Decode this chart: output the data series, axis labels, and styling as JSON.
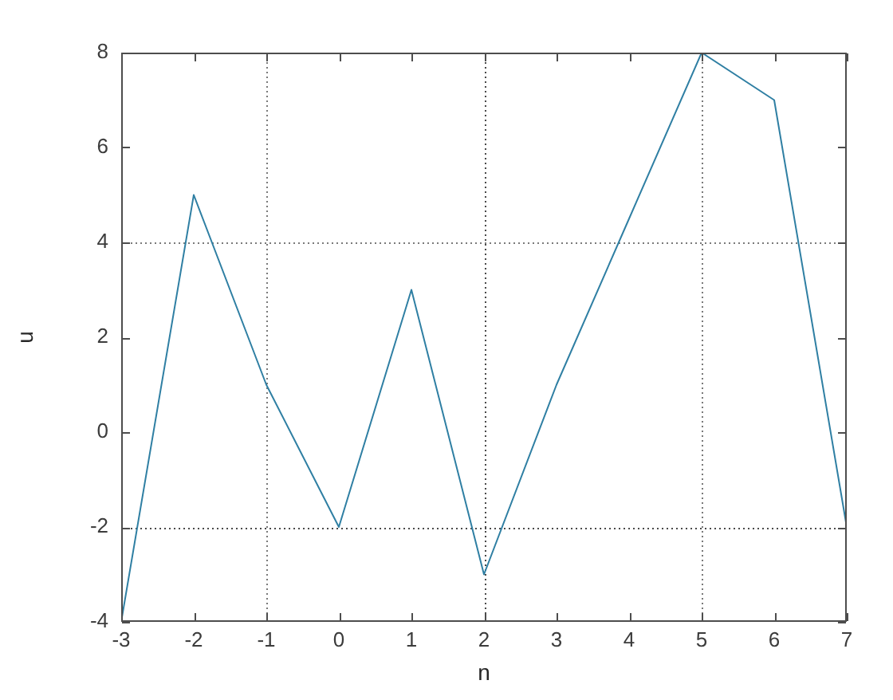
{
  "chart_data": {
    "type": "line",
    "xlabel": "n",
    "ylabel": "u",
    "x": [
      -3,
      -2,
      -1,
      0,
      1,
      2,
      3,
      4,
      5,
      6,
      7
    ],
    "values": [
      -4,
      5,
      1,
      -2,
      3,
      -3,
      1,
      4.5,
      8,
      7,
      -2
    ],
    "color": "#2f7fa3",
    "xlim": [
      -3,
      7
    ],
    "xticks": [
      -3,
      -2,
      -1,
      0,
      1,
      2,
      3,
      4,
      5,
      6,
      7
    ],
    "ylim": [
      -4,
      8
    ],
    "yticks": [
      -4,
      -2,
      0,
      2,
      4,
      6,
      8
    ],
    "ref_lines": [
      {
        "axis": "x",
        "value": -1,
        "color": "#7a7a7a",
        "line_style": "dotted"
      },
      {
        "axis": "x",
        "value": 2,
        "color": "#4a4a4a",
        "line_style": "dotted"
      },
      {
        "axis": "x",
        "value": 5,
        "color": "#7a7a7a",
        "line_style": "dotted"
      },
      {
        "axis": "y",
        "value": -2,
        "color": "#4a4a4a",
        "line_style": "dotted"
      },
      {
        "axis": "y",
        "value": 4,
        "color": "#7a7a7a",
        "line_style": "dotted"
      }
    ],
    "marker": "none",
    "line_style": "solid"
  }
}
